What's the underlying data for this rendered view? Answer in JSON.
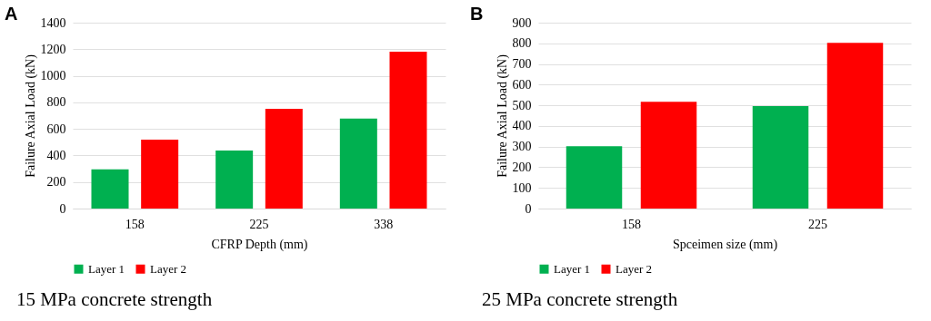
{
  "chart_data": [
    {
      "type": "bar",
      "title": "A",
      "xlabel": "CFRP Depth (mm)",
      "ylabel": "Failure Axial Load (kN)",
      "categories": [
        "158",
        "225",
        "338"
      ],
      "series": [
        {
          "name": "Layer 1",
          "color": "#00b050",
          "values": [
            295,
            437,
            677
          ]
        },
        {
          "name": "Layer 2",
          "color": "#ff0000",
          "values": [
            519,
            751,
            1181
          ]
        }
      ],
      "ylim": [
        0,
        1400
      ],
      "yticks": [
        0,
        200,
        400,
        600,
        800,
        1000,
        1200,
        1400
      ],
      "grid": "y",
      "legend": "bottom",
      "annotations": [
        "15 MPa concrete strength"
      ]
    },
    {
      "type": "bar",
      "title": "B",
      "xlabel": "Spceimen size (mm)",
      "ylabel": "Failure Axial Load (kN)",
      "categories": [
        "158",
        "225"
      ],
      "series": [
        {
          "name": "Layer 1",
          "color": "#00b050",
          "values": [
            302,
            496
          ]
        },
        {
          "name": "Layer 2",
          "color": "#ff0000",
          "values": [
            517,
            802
          ]
        }
      ],
      "ylim": [
        0,
        900
      ],
      "yticks": [
        0,
        100,
        200,
        300,
        400,
        500,
        600,
        700,
        800,
        900
      ],
      "grid": "y",
      "legend": "bottom",
      "annotations": [
        "25 MPa concrete strength"
      ]
    }
  ]
}
